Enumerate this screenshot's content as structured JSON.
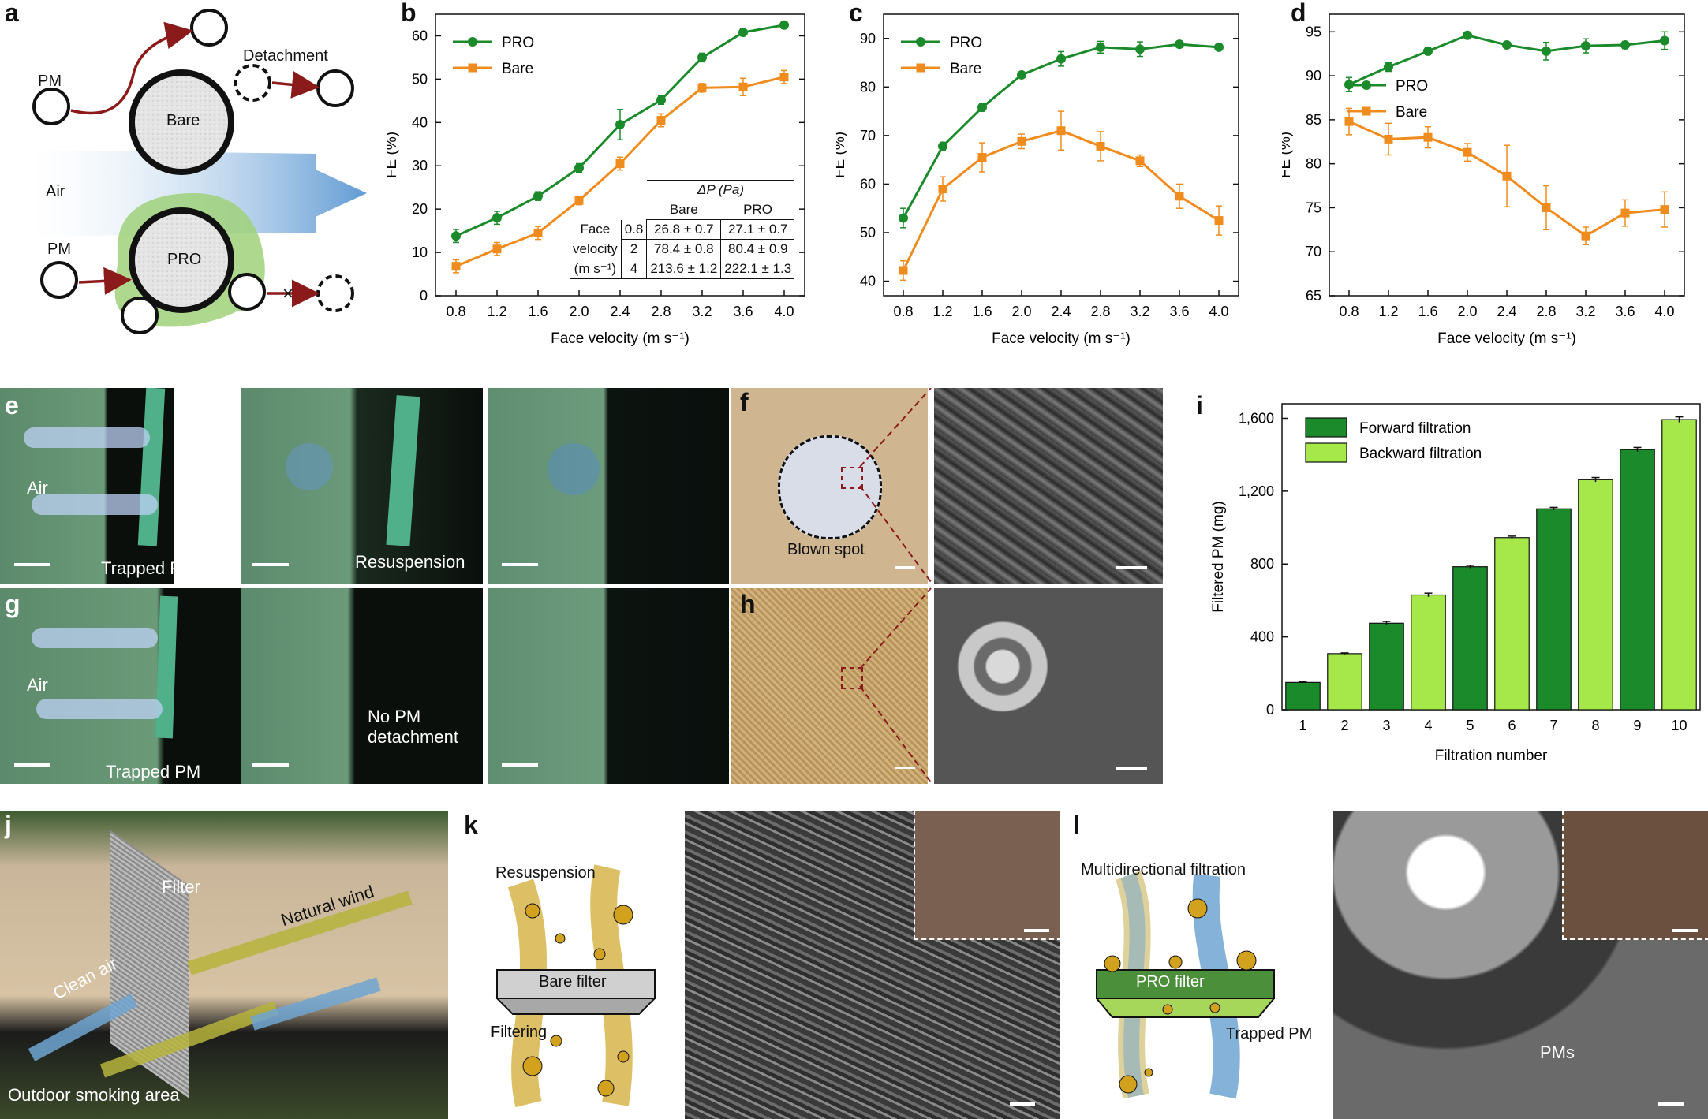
{
  "panels": {
    "a": {
      "label": "a",
      "detachment": "Detachment",
      "pm_top": "PM",
      "pm_bottom": "PM",
      "bare": "Bare",
      "air": "Air",
      "pro": "PRO"
    },
    "e": {
      "label": "e",
      "air": "Air",
      "trapped_pm": "Trapped PM",
      "resuspension": "Resuspension"
    },
    "f": {
      "label": "f",
      "blown_spot": "Blown spot"
    },
    "g": {
      "label": "g",
      "air": "Air",
      "trapped_pm": "Trapped PM",
      "no_detach_1": "No PM",
      "no_detach_2": "detachment"
    },
    "h": {
      "label": "h"
    },
    "j": {
      "label": "j",
      "filter": "Filter",
      "natural_wind": "Natural wind",
      "clean_air": "Clean air",
      "outdoor": "Outdoor smoking area"
    },
    "k": {
      "label": "k",
      "resuspension": "Resuspension",
      "bare_filter": "Bare filter",
      "filtering": "Filtering"
    },
    "l": {
      "label": "l",
      "multidirectional": "Multidirectional filtration",
      "pro_filter": "PRO filter",
      "trapped_pm": "Trapped PM",
      "pms": "PMs"
    }
  },
  "table": {
    "header": "ΔP (Pa)",
    "cols": [
      "Bare",
      "PRO"
    ],
    "row_label_1": "Face",
    "row_label_2": "velocity",
    "row_label_3": "(m s⁻¹)",
    "rows": [
      {
        "v": "0.8",
        "bare": "26.8 ± 0.7",
        "pro": "27.1 ± 0.7"
      },
      {
        "v": "2",
        "bare": "78.4 ± 0.8",
        "pro": "80.4 ± 0.9"
      },
      {
        "v": "4",
        "bare": "213.6 ± 1.2",
        "pro": "222.1 ± 1.3"
      }
    ]
  },
  "colors": {
    "pro": "#1a8a2a",
    "bare": "#f08c1e",
    "forward": "#1a8a2a",
    "backward": "#a6e84a"
  },
  "chart_data": [
    {
      "id": "b",
      "label": "b",
      "type": "line",
      "xlabel": "Face velocity (m s⁻¹)",
      "ylabel": "FE (%)",
      "x": [
        0.8,
        1.2,
        1.6,
        2.0,
        2.4,
        2.8,
        3.2,
        3.6,
        4.0
      ],
      "xticks": [
        "0.8",
        "1.2",
        "1.6",
        "2.0",
        "2.4",
        "2.8",
        "3.2",
        "3.6",
        "4.0"
      ],
      "ylim": [
        0,
        65
      ],
      "yticks": [
        0,
        10,
        20,
        30,
        40,
        50,
        60
      ],
      "legend": "top-left",
      "series": [
        {
          "name": "PRO",
          "values": [
            13.8,
            18,
            23,
            29.5,
            39.5,
            45.2,
            55,
            60.8,
            62.5
          ],
          "err": [
            1.5,
            1.5,
            1,
            1,
            3.5,
            1,
            1,
            0.8,
            0.8
          ]
        },
        {
          "name": "Bare",
          "values": [
            6.8,
            10.8,
            14.5,
            22,
            30.5,
            40.5,
            48,
            48.2,
            50.5
          ],
          "err": [
            1.5,
            1.5,
            1.5,
            1,
            1.5,
            1.5,
            1,
            2,
            1.5
          ]
        }
      ]
    },
    {
      "id": "c",
      "label": "c",
      "type": "line",
      "xlabel": "Face velocity (m s⁻¹)",
      "ylabel": "FE (%)",
      "x": [
        0.8,
        1.2,
        1.6,
        2.0,
        2.4,
        2.8,
        3.2,
        3.6,
        4.0
      ],
      "xticks": [
        "0.8",
        "1.2",
        "1.6",
        "2.0",
        "2.4",
        "2.8",
        "3.2",
        "3.6",
        "4.0"
      ],
      "ylim": [
        37,
        95
      ],
      "yticks": [
        40,
        50,
        60,
        70,
        80,
        90
      ],
      "legend": "top-left",
      "series": [
        {
          "name": "PRO",
          "values": [
            53,
            67.8,
            75.8,
            82.5,
            85.8,
            88.2,
            87.8,
            88.8,
            88.2
          ],
          "err": [
            2,
            0.8,
            0.8,
            0.5,
            1.5,
            1.2,
            1.5,
            0.5,
            0.5
          ]
        },
        {
          "name": "Bare",
          "values": [
            42.2,
            59,
            65.5,
            68.8,
            71,
            67.8,
            64.8,
            57.5,
            52.5
          ],
          "err": [
            2,
            2.5,
            3,
            1.5,
            4,
            3,
            1.2,
            2.5,
            3
          ]
        }
      ]
    },
    {
      "id": "d",
      "label": "d",
      "type": "line",
      "xlabel": "Face velocity (m s⁻¹)",
      "ylabel": "FE (%)",
      "x": [
        0.8,
        1.2,
        1.6,
        2.0,
        2.4,
        2.8,
        3.2,
        3.6,
        4.0
      ],
      "xticks": [
        "0.8",
        "1.2",
        "1.6",
        "2.0",
        "2.4",
        "2.8",
        "3.2",
        "3.6",
        "4.0"
      ],
      "ylim": [
        65,
        97
      ],
      "yticks": [
        65,
        70,
        75,
        80,
        85,
        90,
        95
      ],
      "legend": "middle-left",
      "series": [
        {
          "name": "PRO",
          "values": [
            89,
            91,
            92.8,
            94.6,
            93.5,
            92.8,
            93.4,
            93.5,
            94
          ],
          "err": [
            0.8,
            0.5,
            0.4,
            0.3,
            0.3,
            1,
            0.8,
            0.4,
            1
          ]
        },
        {
          "name": "Bare",
          "values": [
            84.8,
            82.8,
            83,
            81.3,
            78.6,
            75,
            71.8,
            74.4,
            74.8
          ],
          "err": [
            1.5,
            1.8,
            1.2,
            1,
            3.5,
            2.5,
            1,
            1.5,
            2
          ]
        }
      ]
    },
    {
      "id": "i",
      "label": "i",
      "type": "bar",
      "xlabel": "Filtration number",
      "ylabel": "Filtered PM (mg)",
      "categories": [
        "1",
        "2",
        "3",
        "4",
        "5",
        "6",
        "7",
        "8",
        "9",
        "10"
      ],
      "values": [
        150,
        308,
        475,
        630,
        785,
        945,
        1103,
        1263,
        1428,
        1593
      ],
      "err": [
        3,
        4,
        10,
        10,
        8,
        8,
        8,
        12,
        12,
        15
      ],
      "directions": [
        "forward",
        "backward",
        "forward",
        "backward",
        "forward",
        "backward",
        "forward",
        "backward",
        "forward",
        "backward"
      ],
      "ylim": [
        0,
        1680
      ],
      "yticks": [
        0,
        400,
        800,
        1200,
        1600
      ],
      "ytick_labels": [
        "0",
        "400",
        "800",
        "1,200",
        "1,600"
      ],
      "legend": [
        "Forward filtration",
        "Backward filtration"
      ]
    }
  ]
}
